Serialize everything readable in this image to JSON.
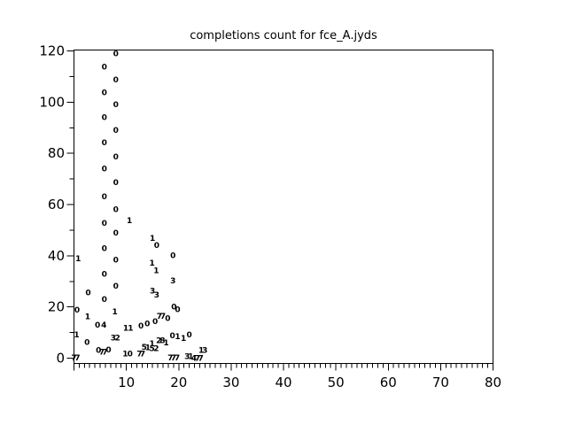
{
  "colors": {
    "foreground": "#000000",
    "background": "#ffffff"
  },
  "chart_data": {
    "type": "scatter",
    "title": "completions count for fce_A.jyds",
    "xlabel": "",
    "ylabel": "",
    "marker": "text-digit-labels",
    "grid": false,
    "legend": "none",
    "x_axis": {
      "range": [
        0,
        80
      ],
      "minor_step": 1,
      "ticks": [
        {
          "value": 10,
          "label": "10"
        },
        {
          "value": 20,
          "label": "20"
        },
        {
          "value": 30,
          "label": "30"
        },
        {
          "value": 40,
          "label": "40"
        },
        {
          "value": 50,
          "label": "50"
        },
        {
          "value": 60,
          "label": "60"
        },
        {
          "value": 70,
          "label": "70"
        },
        {
          "value": 80,
          "label": "80"
        }
      ]
    },
    "y_axis": {
      "range": [
        0,
        120
      ],
      "minor_tick_values": [
        10,
        30,
        50,
        70,
        90,
        110
      ],
      "ticks": [
        {
          "value": 0,
          "label": "0"
        },
        {
          "value": 20,
          "label": "20"
        },
        {
          "value": 40,
          "label": "40"
        },
        {
          "value": 60,
          "label": "60"
        },
        {
          "value": 80,
          "label": "80"
        },
        {
          "value": 100,
          "label": "100"
        },
        {
          "value": 120,
          "label": "120"
        }
      ]
    },
    "points": [
      {
        "x": 8.0,
        "y": 119.1,
        "label": "0"
      },
      {
        "x": 5.8,
        "y": 113.9,
        "label": "0"
      },
      {
        "x": 8.0,
        "y": 108.9,
        "label": "0"
      },
      {
        "x": 5.8,
        "y": 103.8,
        "label": "0"
      },
      {
        "x": 8.0,
        "y": 99.1,
        "label": "0"
      },
      {
        "x": 5.8,
        "y": 94.1,
        "label": "0"
      },
      {
        "x": 8.0,
        "y": 89.1,
        "label": "0"
      },
      {
        "x": 5.8,
        "y": 84.3,
        "label": "0"
      },
      {
        "x": 8.0,
        "y": 78.7,
        "label": "0"
      },
      {
        "x": 5.8,
        "y": 74.1,
        "label": "0"
      },
      {
        "x": 8.0,
        "y": 68.7,
        "label": "0"
      },
      {
        "x": 5.8,
        "y": 63.2,
        "label": "0"
      },
      {
        "x": 8.0,
        "y": 58.2,
        "label": "0"
      },
      {
        "x": 5.8,
        "y": 52.8,
        "label": "0"
      },
      {
        "x": 8.0,
        "y": 49.0,
        "label": "0"
      },
      {
        "x": 5.8,
        "y": 43.0,
        "label": "0"
      },
      {
        "x": 8.0,
        "y": 38.4,
        "label": "0"
      },
      {
        "x": 5.8,
        "y": 32.9,
        "label": "0"
      },
      {
        "x": 8.0,
        "y": 28.2,
        "label": "0"
      },
      {
        "x": 5.8,
        "y": 23.0,
        "label": "0"
      },
      {
        "x": 7.8,
        "y": 18.2,
        "label": "1"
      },
      {
        "x": 7.5,
        "y": 8.1,
        "label": "3"
      },
      {
        "x": 8.3,
        "y": 8.1,
        "label": "2"
      },
      {
        "x": 0.8,
        "y": 39.0,
        "label": "1"
      },
      {
        "x": 0.6,
        "y": 19.0,
        "label": "0"
      },
      {
        "x": 0.5,
        "y": 9.3,
        "label": "1"
      },
      {
        "x": 0.0,
        "y": 0.2,
        "label": "7"
      },
      {
        "x": 0.65,
        "y": 0.2,
        "label": "7"
      },
      {
        "x": 2.7,
        "y": 25.7,
        "label": "0"
      },
      {
        "x": 2.6,
        "y": 16.3,
        "label": "1"
      },
      {
        "x": 2.5,
        "y": 6.3,
        "label": "0"
      },
      {
        "x": 4.5,
        "y": 13.0,
        "label": "0"
      },
      {
        "x": 5.7,
        "y": 13.0,
        "label": "4"
      },
      {
        "x": 4.7,
        "y": 3.1,
        "label": "0"
      },
      {
        "x": 5.3,
        "y": 2.5,
        "label": "7"
      },
      {
        "x": 5.9,
        "y": 2.5,
        "label": "7"
      },
      {
        "x": 6.6,
        "y": 3.3,
        "label": "0"
      },
      {
        "x": 10.6,
        "y": 53.8,
        "label": "1"
      },
      {
        "x": 9.9,
        "y": 11.9,
        "label": "1"
      },
      {
        "x": 10.8,
        "y": 11.9,
        "label": "1"
      },
      {
        "x": 9.8,
        "y": 1.8,
        "label": "1"
      },
      {
        "x": 10.7,
        "y": 1.8,
        "label": "0"
      },
      {
        "x": 12.5,
        "y": 1.8,
        "label": "7"
      },
      {
        "x": 13.1,
        "y": 1.8,
        "label": "7"
      },
      {
        "x": 12.8,
        "y": 12.7,
        "label": "0"
      },
      {
        "x": 14.0,
        "y": 13.6,
        "label": "0"
      },
      {
        "x": 15.5,
        "y": 14.5,
        "label": "0"
      },
      {
        "x": 16.3,
        "y": 16.5,
        "label": "7"
      },
      {
        "x": 17.0,
        "y": 16.5,
        "label": "7"
      },
      {
        "x": 17.9,
        "y": 15.7,
        "label": "0"
      },
      {
        "x": 15.0,
        "y": 47.0,
        "label": "1"
      },
      {
        "x": 15.8,
        "y": 44.2,
        "label": "0"
      },
      {
        "x": 14.9,
        "y": 37.2,
        "label": "1"
      },
      {
        "x": 15.7,
        "y": 34.3,
        "label": "1"
      },
      {
        "x": 15.0,
        "y": 26.3,
        "label": "3"
      },
      {
        "x": 15.8,
        "y": 24.8,
        "label": "3"
      },
      {
        "x": 18.9,
        "y": 40.1,
        "label": "0"
      },
      {
        "x": 18.9,
        "y": 30.3,
        "label": "3"
      },
      {
        "x": 19.1,
        "y": 20.2,
        "label": "0"
      },
      {
        "x": 19.8,
        "y": 19.1,
        "label": "0"
      },
      {
        "x": 13.4,
        "y": 4.4,
        "label": "5"
      },
      {
        "x": 14.1,
        "y": 4.2,
        "label": "1"
      },
      {
        "x": 14.9,
        "y": 3.8,
        "label": "5"
      },
      {
        "x": 15.7,
        "y": 3.8,
        "label": "2"
      },
      {
        "x": 14.9,
        "y": 5.7,
        "label": "1"
      },
      {
        "x": 16.2,
        "y": 6.9,
        "label": "2"
      },
      {
        "x": 16.9,
        "y": 6.9,
        "label": "8"
      },
      {
        "x": 17.6,
        "y": 6.1,
        "label": "1"
      },
      {
        "x": 18.8,
        "y": 8.9,
        "label": "0"
      },
      {
        "x": 19.8,
        "y": 8.5,
        "label": "1"
      },
      {
        "x": 20.9,
        "y": 7.8,
        "label": "1"
      },
      {
        "x": 22.0,
        "y": 9.2,
        "label": "0"
      },
      {
        "x": 24.3,
        "y": 3.2,
        "label": "1"
      },
      {
        "x": 25.0,
        "y": 3.2,
        "label": "3"
      },
      {
        "x": 18.4,
        "y": 0.2,
        "label": "7"
      },
      {
        "x": 19.0,
        "y": 0.2,
        "label": "7"
      },
      {
        "x": 19.7,
        "y": 0.2,
        "label": "7"
      },
      {
        "x": 21.6,
        "y": 0.7,
        "label": "3"
      },
      {
        "x": 22.3,
        "y": 0.7,
        "label": "1"
      },
      {
        "x": 22.9,
        "y": 0.1,
        "label": "4"
      },
      {
        "x": 23.6,
        "y": 0.1,
        "label": "7"
      },
      {
        "x": 24.2,
        "y": 0.1,
        "label": "7"
      }
    ]
  }
}
